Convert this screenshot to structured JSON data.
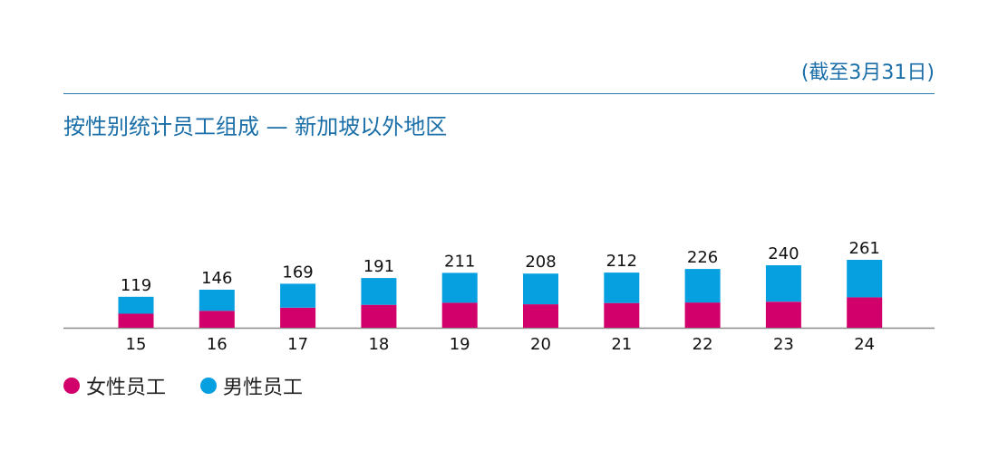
{
  "note": "(截至3月31日)",
  "chart_data": {
    "type": "bar",
    "stacked": true,
    "title": "按性别统计员工组成 — 新加坡以外地区",
    "categories": [
      "15",
      "16",
      "17",
      "18",
      "19",
      "20",
      "21",
      "22",
      "23",
      "24"
    ],
    "totals": [
      "119",
      "146",
      "169",
      "191",
      "211",
      "208",
      "212",
      "226",
      "240",
      "261"
    ],
    "series": [
      {
        "name": "女性员工",
        "color": "#d1006b",
        "values": [
          54,
          65,
          77,
          88,
          96,
          90,
          95,
          97,
          100,
          117
        ]
      },
      {
        "name": "男性员工",
        "color": "#069fe0",
        "values": [
          65,
          81,
          92,
          103,
          115,
          118,
          117,
          129,
          140,
          144
        ]
      }
    ],
    "ylim": [
      0,
      270
    ],
    "grid": false,
    "legend": "bottom-left"
  }
}
